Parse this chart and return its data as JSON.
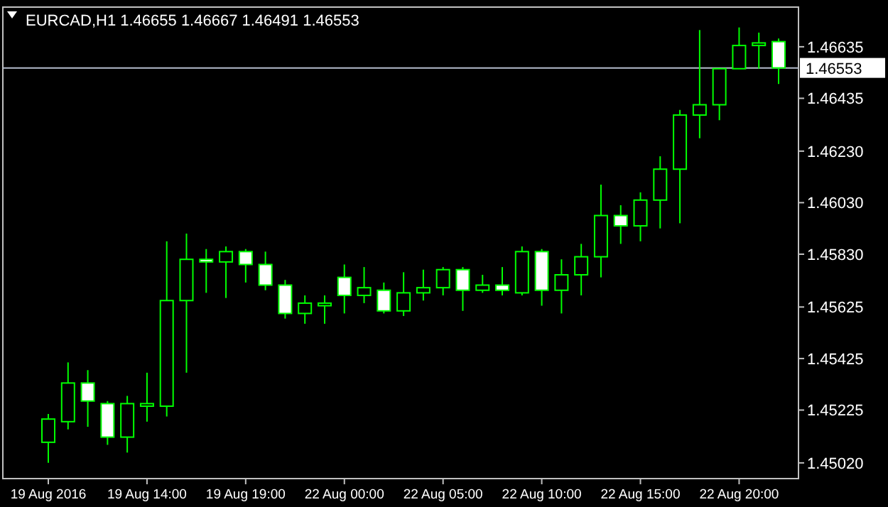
{
  "chart_data": {
    "type": "candlestick",
    "title": "EURCAD,H1  1.46655 1.46667 1.46491 1.46553",
    "categories": [
      "19 Aug 2016",
      null,
      null,
      null,
      null,
      "19 Aug 14:00",
      null,
      null,
      null,
      null,
      "19 Aug 19:00",
      null,
      null,
      null,
      null,
      "22 Aug 00:00",
      null,
      null,
      null,
      null,
      "22 Aug 05:00",
      null,
      null,
      null,
      null,
      "22 Aug 10:00",
      null,
      null,
      null,
      null,
      "22 Aug 15:00",
      null,
      null,
      null,
      null,
      "22 Aug 20:00",
      null,
      null
    ],
    "series": [
      {
        "color": "#00ff00",
        "colors": [
          "#000000",
          "#000000",
          "#ffffff",
          "#ffffff",
          "#000000",
          "#000000",
          "#000000",
          "#000000",
          "#ffffff",
          "#000000",
          "#ffffff",
          "#ffffff",
          "#ffffff",
          "#000000",
          "#000000",
          "#ffffff",
          "#000000",
          "#ffffff",
          "#000000",
          "#000000",
          "#000000",
          "#ffffff",
          "#000000",
          "#ffffff",
          "#000000",
          "#ffffff",
          "#000000",
          "#000000",
          "#000000",
          "#ffffff",
          "#000000",
          "#000000",
          "#000000",
          "#000000",
          "#000000",
          "#000000",
          "#000000",
          "#ffffff"
        ],
        "ohlc": [
          [
            1.451,
            1.4521,
            1.4502,
            1.4519
          ],
          [
            1.4518,
            1.4541,
            1.4515,
            1.4533
          ],
          [
            1.4533,
            1.4538,
            1.4516,
            1.4526
          ],
          [
            1.4525,
            1.4526,
            1.4509,
            1.4512
          ],
          [
            1.4512,
            1.4528,
            1.4506,
            1.4525
          ],
          [
            1.4524,
            1.4537,
            1.4518,
            1.4525
          ],
          [
            1.4524,
            1.4588,
            1.452,
            1.4565
          ],
          [
            1.4565,
            1.4591,
            1.4537,
            1.4581
          ],
          [
            1.4581,
            1.4585,
            1.4568,
            1.458
          ],
          [
            1.458,
            1.4586,
            1.4566,
            1.4584
          ],
          [
            1.4584,
            1.4585,
            1.4572,
            1.4579
          ],
          [
            1.4579,
            1.4584,
            1.4569,
            1.4571
          ],
          [
            1.4571,
            1.4573,
            1.4558,
            1.456
          ],
          [
            1.456,
            1.4567,
            1.4556,
            1.4564
          ],
          [
            1.4563,
            1.4567,
            1.4556,
            1.4564
          ],
          [
            1.4574,
            1.4579,
            1.456,
            1.4567
          ],
          [
            1.4567,
            1.4578,
            1.4564,
            1.457
          ],
          [
            1.4569,
            1.4572,
            1.456,
            1.4561
          ],
          [
            1.4561,
            1.4576,
            1.4559,
            1.4568
          ],
          [
            1.4568,
            1.4577,
            1.4565,
            1.457
          ],
          [
            1.457,
            1.4578,
            1.4567,
            1.4577
          ],
          [
            1.4577,
            1.4578,
            1.4561,
            1.4569
          ],
          [
            1.4569,
            1.4575,
            1.4568,
            1.4571
          ],
          [
            1.4571,
            1.4578,
            1.4567,
            1.4569
          ],
          [
            1.4568,
            1.4586,
            1.4567,
            1.4584
          ],
          [
            1.4584,
            1.4585,
            1.4563,
            1.4569
          ],
          [
            1.4569,
            1.4581,
            1.456,
            1.4575
          ],
          [
            1.4575,
            1.4587,
            1.4567,
            1.4582
          ],
          [
            1.4582,
            1.461,
            1.4574,
            1.4598
          ],
          [
            1.4598,
            1.4602,
            1.4587,
            1.4594
          ],
          [
            1.4594,
            1.4607,
            1.4588,
            1.4604
          ],
          [
            1.4604,
            1.4621,
            1.4593,
            1.4616
          ],
          [
            1.4616,
            1.4639,
            1.4595,
            1.4637
          ],
          [
            1.4637,
            1.467,
            1.4628,
            1.4641
          ],
          [
            1.4641,
            1.4655,
            1.4635,
            1.4655
          ],
          [
            1.4655,
            1.4671,
            1.4655,
            1.4664
          ],
          [
            1.4664,
            1.4669,
            1.4655,
            1.4665
          ],
          [
            1.46655,
            1.46667,
            1.46491,
            1.46553
          ]
        ]
      }
    ],
    "ylim": [
      1.44959,
      1.46789
    ],
    "yticks": [
      1.46635,
      1.46435,
      {
        "value": 1.4623,
        "label": "1.46230"
      },
      {
        "value": 1.4603,
        "label": "1.46030"
      },
      {
        "value": 1.4583,
        "label": "1.45830"
      },
      1.45625,
      1.45425,
      1.45225,
      {
        "value": 1.4502,
        "label": "1.45020"
      }
    ],
    "ref_lines": [
      {
        "axis": "y",
        "value": 1.46553,
        "label": "1.46553",
        "color": "#b4bccc"
      }
    ]
  }
}
